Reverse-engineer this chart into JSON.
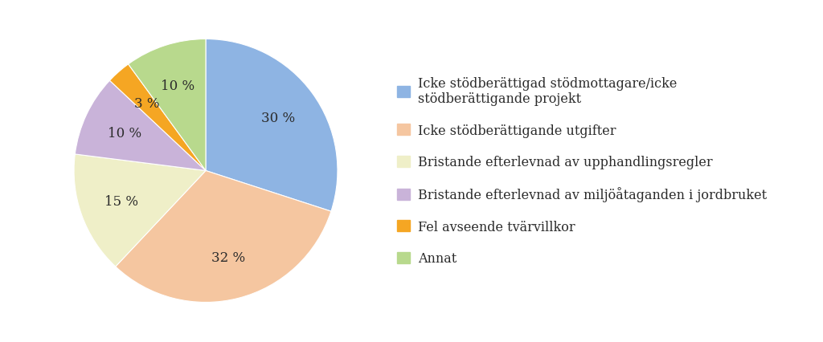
{
  "slices": [
    30,
    32,
    15,
    10,
    3,
    10
  ],
  "colors": [
    "#8EB4E3",
    "#F5C6A0",
    "#EFEFC8",
    "#C9B3D9",
    "#F5A623",
    "#B8D98D"
  ],
  "labels": [
    "30 %",
    "32 %",
    "15 %",
    "10 %",
    "3 %",
    "10 %"
  ],
  "legend_labels": [
    "Icke stödberättigad stödmottagare/icke\nstödberättigande projekt",
    "Icke stödberättigande utgifter",
    "Bristande efterlevnad av upphandlingsregler",
    "Bristande efterlevnad av miljöåtaganden i jordbruket",
    "Fel avseende tvärvillkor",
    "Annat"
  ],
  "startangle": 90,
  "background_color": "#FFFFFF",
  "text_color": "#2B2B2B",
  "label_fontsize": 12,
  "legend_fontsize": 11.5
}
